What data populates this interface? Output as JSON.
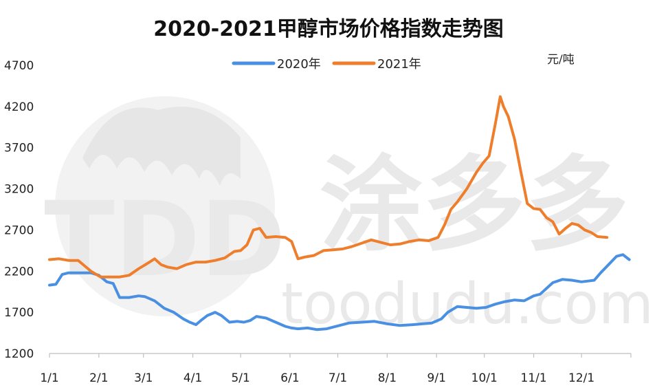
{
  "chart_data": {
    "type": "line",
    "title": "2020-2021甲醇市场价格指数走势图",
    "unit": "元/吨",
    "xlabel": "",
    "ylabel": "",
    "ylim": [
      1200,
      4700
    ],
    "yticks": [
      1200,
      1700,
      2200,
      2700,
      3200,
      3700,
      4200,
      4700
    ],
    "xlim": [
      0,
      365
    ],
    "xticks": [
      {
        "label": "1/1",
        "day": 0
      },
      {
        "label": "2/1",
        "day": 31
      },
      {
        "label": "3/1",
        "day": 59
      },
      {
        "label": "4/1",
        "day": 90
      },
      {
        "label": "5/1",
        "day": 120
      },
      {
        "label": "6/1",
        "day": 151
      },
      {
        "label": "7/1",
        "day": 181
      },
      {
        "label": "8/1",
        "day": 212
      },
      {
        "label": "9/1",
        "day": 243
      },
      {
        "label": "10/1",
        "day": 273
      },
      {
        "label": "11/1",
        "day": 304
      },
      {
        "label": "12/1",
        "day": 334
      }
    ],
    "legend_position": "top",
    "grid": false,
    "series": [
      {
        "name": "2020年",
        "color": "#4a90e2",
        "x": [
          0,
          4,
          8,
          12,
          18,
          26,
          31,
          36,
          40,
          44,
          50,
          56,
          60,
          66,
          72,
          78,
          84,
          88,
          92,
          95,
          99,
          104,
          108,
          113,
          118,
          122,
          126,
          130,
          136,
          142,
          148,
          152,
          156,
          162,
          168,
          174,
          182,
          188,
          196,
          204,
          212,
          220,
          228,
          234,
          240,
          246,
          250,
          256,
          262,
          268,
          274,
          280,
          286,
          292,
          298,
          304,
          308,
          312,
          316,
          322,
          328,
          334,
          338,
          342,
          346,
          352,
          356,
          360,
          364
        ],
        "y": [
          2030,
          2040,
          2160,
          2180,
          2180,
          2180,
          2150,
          2070,
          2050,
          1880,
          1880,
          1900,
          1890,
          1840,
          1750,
          1700,
          1620,
          1580,
          1550,
          1600,
          1660,
          1700,
          1660,
          1580,
          1590,
          1580,
          1600,
          1650,
          1630,
          1580,
          1530,
          1510,
          1500,
          1510,
          1490,
          1500,
          1540,
          1570,
          1580,
          1590,
          1560,
          1540,
          1550,
          1560,
          1570,
          1620,
          1700,
          1770,
          1760,
          1750,
          1760,
          1800,
          1830,
          1850,
          1840,
          1900,
          1920,
          1990,
          2060,
          2100,
          2090,
          2070,
          2080,
          2090,
          2180,
          2300,
          2380,
          2400,
          2340
        ]
      },
      {
        "name": "2021年",
        "color": "#ef7e2c",
        "x": [
          0,
          6,
          12,
          18,
          26,
          32,
          38,
          44,
          50,
          56,
          62,
          66,
          70,
          74,
          80,
          86,
          92,
          98,
          104,
          110,
          116,
          120,
          124,
          128,
          132,
          136,
          142,
          148,
          152,
          156,
          160,
          166,
          172,
          178,
          184,
          190,
          196,
          202,
          208,
          214,
          220,
          226,
          232,
          238,
          244,
          248,
          252,
          256,
          262,
          268,
          272,
          276,
          280,
          283,
          285,
          288,
          292,
          296,
          300,
          304,
          308,
          312,
          316,
          320,
          324,
          328,
          332,
          336,
          340,
          344,
          350
        ],
        "y": [
          2340,
          2350,
          2330,
          2330,
          2200,
          2130,
          2130,
          2130,
          2150,
          2230,
          2300,
          2350,
          2280,
          2250,
          2230,
          2280,
          2310,
          2310,
          2330,
          2360,
          2440,
          2450,
          2520,
          2700,
          2720,
          2610,
          2620,
          2610,
          2560,
          2350,
          2370,
          2390,
          2450,
          2460,
          2470,
          2500,
          2540,
          2580,
          2550,
          2520,
          2530,
          2560,
          2580,
          2570,
          2610,
          2760,
          2950,
          3040,
          3200,
          3400,
          3510,
          3600,
          4000,
          4320,
          4200,
          4080,
          3800,
          3400,
          3020,
          2960,
          2950,
          2850,
          2800,
          2650,
          2720,
          2780,
          2760,
          2700,
          2670,
          2620,
          2610
        ]
      }
    ]
  },
  "watermark": {
    "logo_text": "TDD",
    "brand_text": "涂多多",
    "url_text": "toodudu.com"
  }
}
